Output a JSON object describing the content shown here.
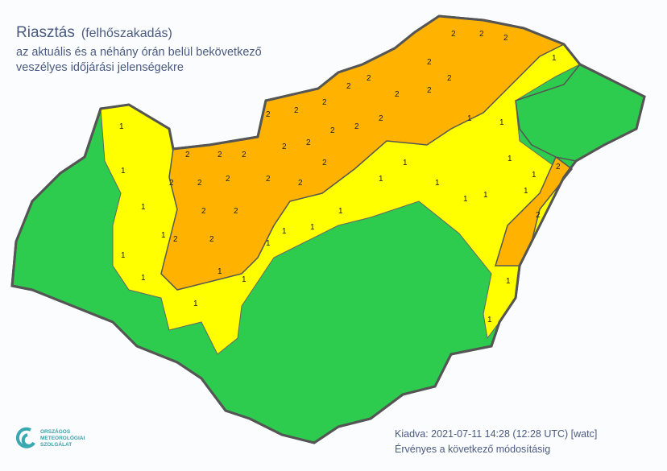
{
  "title": {
    "main": "Riasztás",
    "sub": "(felhőszakadás)",
    "line2": "az aktuális és a néhány órán belül bekövetkező",
    "line3": "veszélyes időjárási jelenségekre"
  },
  "footer": {
    "issued": "Kiadva: 2021-07-11 14:28 (12:28 UTC) [watc]",
    "valid": "Érvényes a következő módosításig"
  },
  "logo": {
    "line1": "ORSZÁGOS",
    "line2": "METEOROLÓGIAI",
    "line3": "SZOLGÁLAT"
  },
  "legend_colors": {
    "level0": "#2ecc4e",
    "level1": "#ffff00",
    "level2": "#ffb300",
    "border": "#555555"
  },
  "warning_levels": {
    "yellow_label": "1",
    "orange_label": "2"
  }
}
